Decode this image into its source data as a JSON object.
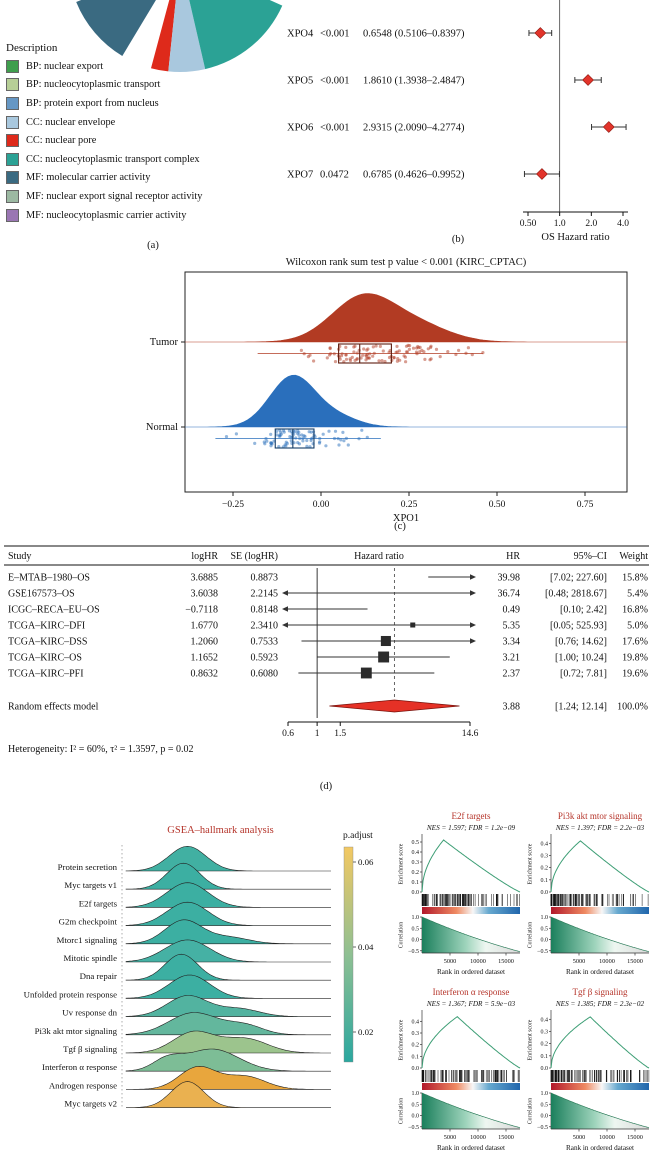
{
  "panel_labels": {
    "a": "(a)",
    "b": "(b)",
    "c": "(c)",
    "d": "(d)"
  },
  "go_legend": {
    "title": "Description",
    "items": [
      {
        "label": "BP: nuclear export",
        "color": "#3f9e4d"
      },
      {
        "label": "BP: nucleocytoplasmic transport",
        "color": "#b7cf97"
      },
      {
        "label": "BP: protein export from nucleus",
        "color": "#6697c4"
      },
      {
        "label": "CC: nuclear envelope",
        "color": "#a9c8de"
      },
      {
        "label": "CC: nuclear pore",
        "color": "#de2a1b"
      },
      {
        "label": "CC: nucleocytoplasmic transport complex",
        "color": "#2ba295"
      },
      {
        "label": "MF: molecular carrier activity",
        "color": "#3a6a81"
      },
      {
        "label": "MF: nuclear export signal receptor activity",
        "color": "#9cb9a2"
      },
      {
        "label": "MF: nucleocytoplasmic carrier activity",
        "color": "#9a76b3"
      }
    ]
  },
  "chart_data": [
    {
      "id": "go_pie_fragment",
      "type": "pie",
      "note": "cropped bottom portion of GO-term pie chart",
      "slices": [
        {
          "label": "MF: molecular carrier activity",
          "color": "#3a6a81",
          "start_deg": 121,
          "end_deg": 158
        },
        {
          "label": "CC: nuclear pore",
          "color": "#de2a1b",
          "start_deg": 96,
          "end_deg": 105
        },
        {
          "label": "CC: nuclear envelope",
          "color": "#a9c8de",
          "start_deg": 77,
          "end_deg": 96
        },
        {
          "label": "CC: nucleocytoplasmic transport complex",
          "color": "#2ba295",
          "start_deg": 24,
          "end_deg": 77
        }
      ]
    },
    {
      "id": "os_forest",
      "type": "forest",
      "xlabel": "OS Hazard ratio",
      "x_scale": "log",
      "ref_line": 1.0,
      "marker_color": "#e2342b",
      "xticks": [
        {
          "v": 0.5,
          "label": "0.50"
        },
        {
          "v": 1.0,
          "label": "1.0"
        },
        {
          "v": 2.0,
          "label": "2.0"
        },
        {
          "v": 4.0,
          "label": "4.0"
        }
      ],
      "rows": [
        {
          "gene": "XPO4",
          "p": "<0.001",
          "ci_text": "0.6548 (0.5106–0.8397)",
          "hr": 0.6548,
          "lo": 0.5106,
          "hi": 0.8397
        },
        {
          "gene": "XPO5",
          "p": "<0.001",
          "ci_text": "1.8610 (1.3938–2.4847)",
          "hr": 1.861,
          "lo": 1.3938,
          "hi": 2.4847
        },
        {
          "gene": "XPO6",
          "p": "<0.001",
          "ci_text": "2.9315 (2.0090–4.2774)",
          "hr": 2.9315,
          "lo": 2.009,
          "hi": 4.2774
        },
        {
          "gene": "XPO7",
          "p": "0.0472",
          "ci_text": "0.6785 (0.4626–0.9952)",
          "hr": 0.6785,
          "lo": 0.4626,
          "hi": 0.9952
        }
      ]
    },
    {
      "id": "raincloud",
      "type": "raincloud",
      "title": "Wilcoxon rank sum test p value < 0.001 (KIRC_CPTAC)",
      "xlabel": "XPO1",
      "xticks": [
        {
          "v": -0.25,
          "label": "−0.25"
        },
        {
          "v": 0,
          "label": "0.00"
        },
        {
          "v": 0.25,
          "label": "0.25"
        },
        {
          "v": 0.5,
          "label": "0.50"
        },
        {
          "v": 0.75,
          "label": "0.75"
        }
      ],
      "groups": [
        {
          "label": "Tumor",
          "color": "#b23b23",
          "box_color": "#5e1d0f",
          "n": 105,
          "min": -0.18,
          "max": 0.46,
          "q1": 0.05,
          "median": 0.11,
          "q3": 0.2,
          "mixture": [
            {
              "w": 0.75,
              "m": 0.12,
              "s": 0.09
            },
            {
              "w": 0.25,
              "m": 0.28,
              "s": 0.09
            }
          ]
        },
        {
          "label": "Normal",
          "color": "#2a6fbc",
          "box_color": "#133c68",
          "n": 85,
          "min": -0.3,
          "max": 0.17,
          "q1": -0.13,
          "median": -0.08,
          "q3": -0.02,
          "mixture": [
            {
              "w": 0.85,
              "m": -0.08,
              "s": 0.065
            },
            {
              "w": 0.15,
              "m": 0.05,
              "s": 0.06
            }
          ]
        }
      ]
    },
    {
      "id": "meta_forest",
      "type": "forest-table",
      "columns": {
        "study": "Study",
        "loghr": "logHR",
        "se": "SE (logHR)",
        "plot": "Hazard ratio",
        "hr": "HR",
        "ci": "95%–CI",
        "weight": "Weight"
      },
      "x_scale": "log",
      "x_range": [
        0.6,
        14.6
      ],
      "ref_line": 1,
      "dashed_line": 3.88,
      "xticks": [
        {
          "v": 0.6,
          "label": "0.6"
        },
        {
          "v": 1,
          "label": "1"
        },
        {
          "v": 1.5,
          "label": "1.5"
        },
        {
          "v": 14.6,
          "label": "14.6"
        }
      ],
      "rows": [
        {
          "study": "E–MTAB–1980–OS",
          "loghr": "3.6885",
          "se": "0.8873",
          "hr": 39.98,
          "lo": 7.02,
          "hi": 227.6,
          "hr_text": "39.98",
          "ci_text": "[7.02; 227.60]",
          "weight": "15.8%"
        },
        {
          "study": "GSE167573–OS",
          "loghr": "3.6038",
          "se": "2.2145",
          "hr": 36.74,
          "lo": 0.48,
          "hi": 2818.67,
          "hr_text": "36.74",
          "ci_text": "[0.48; 2818.67]",
          "weight": "5.4%"
        },
        {
          "study": "ICGC–RECA–EU–OS",
          "loghr": "−0.7118",
          "se": "0.8148",
          "hr": 0.49,
          "lo": 0.1,
          "hi": 2.42,
          "hr_text": "0.49",
          "ci_text": "[0.10; 2.42]",
          "weight": "16.8%"
        },
        {
          "study": "TCGA–KIRC–DFI",
          "loghr": "1.6770",
          "se": "2.3410",
          "hr": 5.35,
          "lo": 0.05,
          "hi": 525.93,
          "hr_text": "5.35",
          "ci_text": "[0.05; 525.93]",
          "weight": "5.0%"
        },
        {
          "study": "TCGA–KIRC–DSS",
          "loghr": "1.2060",
          "se": "0.7533",
          "hr": 3.34,
          "lo": 0.76,
          "hi": 14.62,
          "hr_text": "3.34",
          "ci_text": "[0.76; 14.62]",
          "weight": "17.6%"
        },
        {
          "study": "TCGA–KIRC–OS",
          "loghr": "1.1652",
          "se": "0.5923",
          "hr": 3.21,
          "lo": 1.0,
          "hi": 10.24,
          "hr_text": "3.21",
          "ci_text": "[1.00; 10.24]",
          "weight": "19.8%"
        },
        {
          "study": "TCGA–KIRC–PFI",
          "loghr": "0.8632",
          "se": "0.6080",
          "hr": 2.37,
          "lo": 0.72,
          "hi": 7.81,
          "hr_text": "2.37",
          "ci_text": "[0.72; 7.81]",
          "weight": "19.6%"
        }
      ],
      "pooled": {
        "study": "Random effects model",
        "hr": 3.88,
        "lo": 1.24,
        "hi": 12.14,
        "hr_text": "3.88",
        "ci_text": "[1.24; 12.14]",
        "weight": "100.0%",
        "color": "#e53126"
      },
      "heterogeneity": "Heterogeneity: I² = 60%, τ² = 1.3597, p = 0.02"
    },
    {
      "id": "gsea_ridge",
      "type": "ridgeline",
      "title": "GSEA–hallmark analysis",
      "title_color": "#b5342a",
      "colorbar": {
        "label": "p.adjust",
        "ticks": [
          "0.06",
          "0.04",
          "0.02"
        ],
        "top_color": "#f3c862",
        "mid_color": "#8fc093",
        "bottom_color": "#2aa79f"
      },
      "ridges": [
        {
          "label": "Protein secretion",
          "color": "#41b0a2",
          "peaks": [
            {
              "p": 0.3,
              "w": 0.09,
              "h": 0.95
            }
          ]
        },
        {
          "label": "Myc targets v1",
          "color": "#3cafa2",
          "peaks": [
            {
              "p": 0.28,
              "w": 0.08,
              "h": 1.0
            }
          ]
        },
        {
          "label": "E2f targets",
          "color": "#3cafa2",
          "peaks": [
            {
              "p": 0.3,
              "w": 0.1,
              "h": 0.95
            }
          ]
        },
        {
          "label": "G2m checkpoint",
          "color": "#3cafa2",
          "peaks": [
            {
              "p": 0.3,
              "w": 0.1,
              "h": 0.9
            }
          ]
        },
        {
          "label": "Mtorc1 signaling",
          "color": "#3cafa2",
          "peaks": [
            {
              "p": 0.28,
              "w": 0.09,
              "h": 0.9
            },
            {
              "p": 0.5,
              "w": 0.1,
              "h": 0.25
            }
          ]
        },
        {
          "label": "Mitotic spindle",
          "color": "#45b1a4",
          "peaks": [
            {
              "p": 0.3,
              "w": 0.11,
              "h": 0.85
            }
          ]
        },
        {
          "label": "Dna repair",
          "color": "#3cafa2",
          "peaks": [
            {
              "p": 0.27,
              "w": 0.08,
              "h": 1.0
            }
          ]
        },
        {
          "label": "Unfolded protein response",
          "color": "#3cafa2",
          "peaks": [
            {
              "p": 0.31,
              "w": 0.1,
              "h": 0.9
            }
          ]
        },
        {
          "label": "Uv response dn",
          "color": "#52b3a0",
          "peaks": [
            {
              "p": 0.3,
              "w": 0.1,
              "h": 0.8
            },
            {
              "p": 0.55,
              "w": 0.1,
              "h": 0.3
            }
          ]
        },
        {
          "label": "Pi3k akt mtor signaling",
          "color": "#63b79d",
          "peaks": [
            {
              "p": 0.33,
              "w": 0.12,
              "h": 0.85
            },
            {
              "p": 0.58,
              "w": 0.09,
              "h": 0.35
            }
          ]
        },
        {
          "label": "Tgf β signaling",
          "color": "#9cc48d",
          "peaks": [
            {
              "p": 0.33,
              "w": 0.1,
              "h": 0.8
            },
            {
              "p": 0.58,
              "w": 0.11,
              "h": 0.55
            }
          ]
        },
        {
          "label": "Interferon α response",
          "color": "#7dbd96",
          "peaks": [
            {
              "p": 0.42,
              "w": 0.13,
              "h": 0.85
            },
            {
              "p": 0.2,
              "w": 0.07,
              "h": 0.4
            }
          ]
        },
        {
          "label": "Androgen response",
          "color": "#e8a63d",
          "peaks": [
            {
              "p": 0.35,
              "w": 0.09,
              "h": 0.85
            },
            {
              "p": 0.58,
              "w": 0.1,
              "h": 0.5
            }
          ]
        },
        {
          "label": "Myc targets v2",
          "color": "#eab150",
          "peaks": [
            {
              "p": 0.3,
              "w": 0.08,
              "h": 1.0
            }
          ]
        }
      ]
    },
    {
      "id": "gsea_panels",
      "type": "gsea",
      "xlabel": "Rank in ordered dataset",
      "ylabel_top": "Enrichment score",
      "ylabel_bottom": "Correlation",
      "x_max": 17500,
      "title_color": "#b5342a",
      "curve_color": "#3d9e75",
      "xticks": [
        {
          "v": 5000,
          "label": "5000"
        },
        {
          "v": 10000,
          "label": "10000"
        },
        {
          "v": 15000,
          "label": "15000"
        }
      ],
      "corr_yticks": [
        {
          "v": 1,
          "label": "1.0"
        },
        {
          "v": 0.5,
          "label": "0.5"
        },
        {
          "v": 0,
          "label": "0.0"
        },
        {
          "v": -0.5,
          "label": "−0.5"
        }
      ],
      "panels": [
        {
          "title": "E2f targets",
          "stats": "NES = 1.597; FDR = 1.2e−09",
          "es_peak": 0.52,
          "peak_pos": 0.22,
          "es_ymax": 0.56,
          "seed": 11,
          "es_yticks": [
            {
              "v": 0.5,
              "label": "0.5"
            },
            {
              "v": 0.4,
              "label": "0.4"
            },
            {
              "v": 0.3,
              "label": "0.3"
            },
            {
              "v": 0.2,
              "label": "0.2"
            },
            {
              "v": 0.1,
              "label": "0.1"
            },
            {
              "v": 0,
              "label": "0.0"
            }
          ]
        },
        {
          "title": "Pi3k akt mtor signaling",
          "stats": "NES = 1.397; FDR = 2.2e−03",
          "es_peak": 0.42,
          "peak_pos": 0.3,
          "es_ymax": 0.46,
          "seed": 22,
          "es_yticks": [
            {
              "v": 0.4,
              "label": "0.4"
            },
            {
              "v": 0.3,
              "label": "0.3"
            },
            {
              "v": 0.2,
              "label": "0.2"
            },
            {
              "v": 0.1,
              "label": "0.1"
            },
            {
              "v": 0,
              "label": "0.0"
            }
          ]
        },
        {
          "title": "Interferon α response",
          "stats": "NES = 1.367; FDR = 5.9e−03",
          "es_peak": 0.44,
          "peak_pos": 0.36,
          "es_ymax": 0.48,
          "seed": 33,
          "es_yticks": [
            {
              "v": 0.4,
              "label": "0.4"
            },
            {
              "v": 0.3,
              "label": "0.3"
            },
            {
              "v": 0.2,
              "label": "0.2"
            },
            {
              "v": 0.1,
              "label": "0.1"
            },
            {
              "v": 0,
              "label": "0.0"
            }
          ]
        },
        {
          "title": "Tgf β signaling",
          "stats": "NES = 1.385; FDR = 2.3e−02",
          "es_peak": 0.42,
          "peak_pos": 0.4,
          "es_ymax": 0.46,
          "seed": 44,
          "es_yticks": [
            {
              "v": 0.4,
              "label": "0.4"
            },
            {
              "v": 0.3,
              "label": "0.3"
            },
            {
              "v": 0.2,
              "label": "0.2"
            },
            {
              "v": 0.1,
              "label": "0.1"
            },
            {
              "v": 0,
              "label": "0.0"
            }
          ]
        }
      ]
    }
  ]
}
